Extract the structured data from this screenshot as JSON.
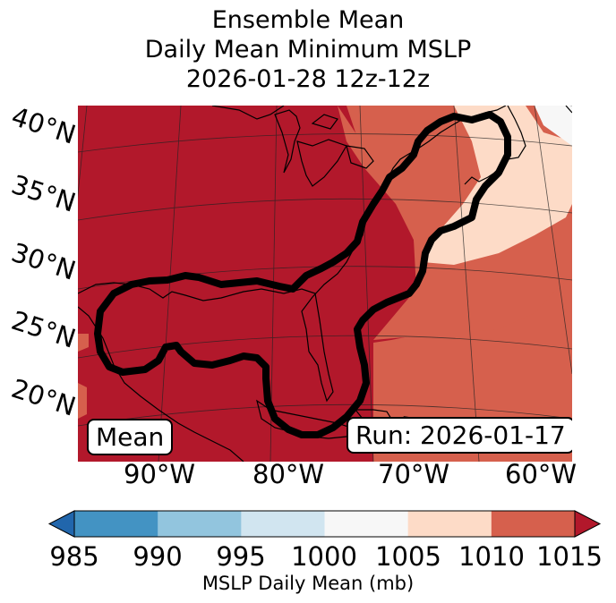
{
  "title": {
    "line1": "Ensemble Mean",
    "line2": "Daily Mean Minimum MSLP",
    "line3": "2026-01-28 12z-12z"
  },
  "map": {
    "lat_labels": [
      "40°N",
      "35°N",
      "30°N",
      "25°N",
      "20°N"
    ],
    "lon_labels": [
      "90°W",
      "80°W",
      "70°W",
      "60°W"
    ],
    "mean_label": "Mean",
    "run_label": "Run: 2026-01-17",
    "fill_colors": {
      "gt1010": "#b2182b",
      "c1005_1010": "#d6604d",
      "c1000_1005": "#fddbc7",
      "c995_1000": "#f7f7f7"
    },
    "contour_color": "#000000"
  },
  "colorbar": {
    "ticks": [
      "985",
      "990",
      "995",
      "1000",
      "1005",
      "1010",
      "1015"
    ],
    "label": "MSLP Daily Mean (mb)",
    "colors": [
      "#2166ac",
      "#4393c3",
      "#92c5de",
      "#d1e5f0",
      "#f7f7f7",
      "#fddbc7",
      "#d6604d",
      "#b2182b"
    ]
  }
}
